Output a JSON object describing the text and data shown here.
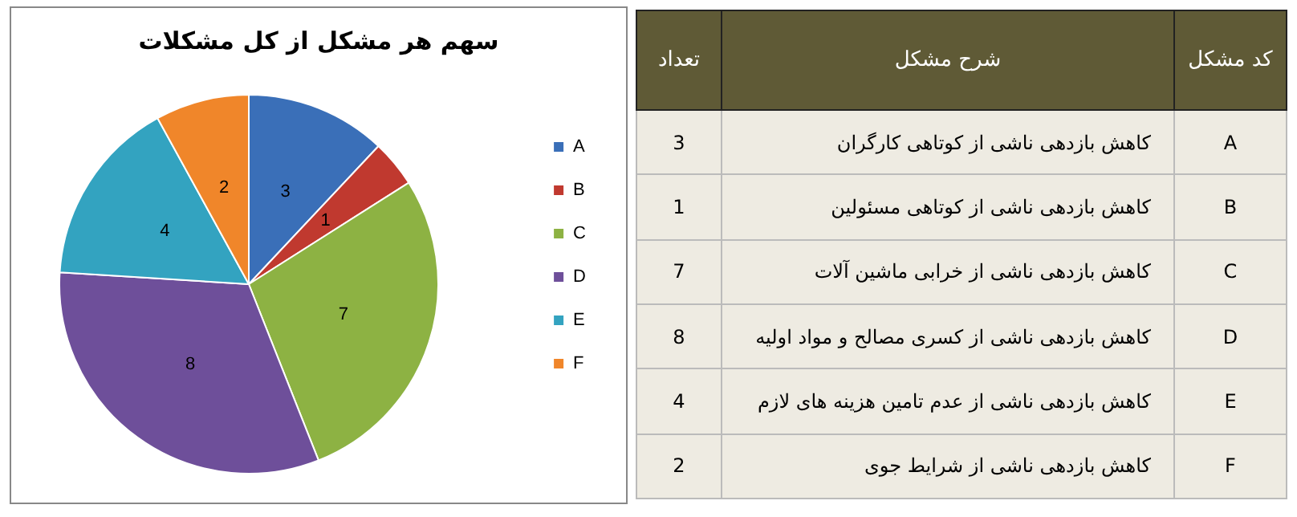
{
  "chart_data": [
    {
      "type": "pie",
      "title": "سهم هر مشکل از کل مشکلات",
      "categories": [
        "A",
        "B",
        "C",
        "D",
        "E",
        "F"
      ],
      "values": [
        3,
        1,
        7,
        8,
        4,
        2
      ],
      "colors": [
        "#3a6fb8",
        "#c0392f",
        "#8db243",
        "#6e4f9a",
        "#33a3c0",
        "#f0862a"
      ],
      "data_labels": true,
      "legend": "right"
    },
    {
      "type": "other",
      "categories": [
        "A",
        "B",
        "C",
        "D",
        "E",
        "F"
      ],
      "values": [
        3,
        1,
        7,
        8,
        4,
        2
      ],
      "data_labels": true,
      "annotations": [
        "کد مشکل",
        "شرح مشکل",
        "تعداد",
        "کاهش بازدهی ناشی از کوتاهی کارگران",
        "کاهش بازدهی ناشی از کوتاهی مسئولین",
        "کاهش بازدهی ناشی از خرابی ماشین آلات",
        "کاهش بازدهی ناشی از کسری مصالح و مواد اولیه",
        "کاهش بازدهی ناشی از عدم تامین هزینه های لازم",
        "کاهش بازدهی ناشی از شرایط جوی"
      ]
    }
  ]
}
